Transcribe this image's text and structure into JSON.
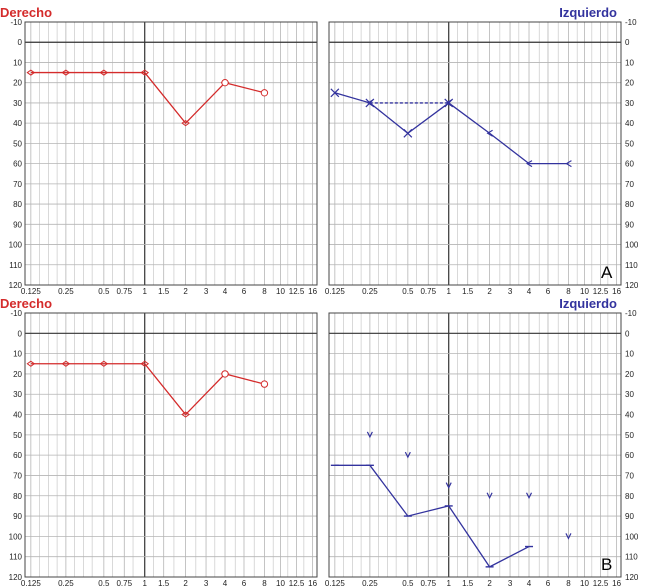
{
  "colors": {
    "right": "#d42b2b",
    "left": "#33339e",
    "grid": "#c9c9c9",
    "frame": "#444444"
  },
  "chart_data": [
    {
      "id": "A-right",
      "type": "line",
      "title": "Derecho",
      "tag": "",
      "x": [
        "0.125",
        "0.25",
        "0.5",
        "0.75",
        "1",
        "1.5",
        "2",
        "3",
        "4",
        "6",
        "8",
        "10",
        "12.5",
        "16"
      ],
      "y_ticks": [
        "-10",
        "0",
        "10",
        "20",
        "30",
        "40",
        "50",
        "60",
        "70",
        "80",
        "90",
        "100",
        "110",
        "120"
      ],
      "ylim": [
        -10,
        120
      ],
      "grid": true,
      "y_axis_side": "left",
      "series": [
        {
          "marker": "diamond",
          "style": "solid",
          "points": [
            [
              0.125,
              15
            ],
            [
              0.25,
              15
            ],
            [
              0.5,
              15
            ],
            [
              1,
              15
            ],
            [
              2,
              40
            ],
            [
              4,
              20
            ]
          ]
        },
        {
          "marker": "circle",
          "style": "solid",
          "points": [
            [
              4,
              20
            ],
            [
              8,
              25
            ]
          ]
        }
      ],
      "isolated_markers": []
    },
    {
      "id": "A-left",
      "type": "line",
      "title": "Izquierdo",
      "tag": "A",
      "x": [
        "0.125",
        "0.25",
        "0.5",
        "0.75",
        "1",
        "1.5",
        "2",
        "3",
        "4",
        "6",
        "8",
        "10",
        "12.5",
        "16"
      ],
      "y_ticks": [
        "-10",
        "0",
        "10",
        "20",
        "30",
        "40",
        "50",
        "60",
        "70",
        "80",
        "90",
        "100",
        "110",
        "120"
      ],
      "ylim": [
        -10,
        120
      ],
      "grid": true,
      "y_axis_side": "right",
      "series": [
        {
          "marker": "x",
          "style": "solid",
          "points": [
            [
              0.125,
              25
            ],
            [
              0.25,
              30
            ],
            [
              0.5,
              45
            ],
            [
              1,
              30
            ]
          ]
        },
        {
          "marker": "lt",
          "style": "dashed",
          "points": [
            [
              0.25,
              30
            ],
            [
              1,
              30
            ]
          ]
        },
        {
          "marker": "lt",
          "style": "solid",
          "points": [
            [
              1,
              30
            ],
            [
              2,
              45
            ],
            [
              4,
              60
            ],
            [
              8,
              60
            ]
          ]
        }
      ],
      "isolated_markers": []
    },
    {
      "id": "B-right",
      "type": "line",
      "title": "Derecho",
      "tag": "",
      "x": [
        "0.125",
        "0.25",
        "0.5",
        "0.75",
        "1",
        "1.5",
        "2",
        "3",
        "4",
        "6",
        "8",
        "10",
        "12.5",
        "16"
      ],
      "y_ticks": [
        "-10",
        "0",
        "10",
        "20",
        "30",
        "40",
        "50",
        "60",
        "70",
        "80",
        "90",
        "100",
        "110",
        "120"
      ],
      "ylim": [
        -10,
        120
      ],
      "grid": true,
      "y_axis_side": "left",
      "series": [
        {
          "marker": "diamond",
          "style": "solid",
          "points": [
            [
              0.125,
              15
            ],
            [
              0.25,
              15
            ],
            [
              0.5,
              15
            ],
            [
              1,
              15
            ],
            [
              2,
              40
            ],
            [
              4,
              20
            ]
          ]
        },
        {
          "marker": "circle",
          "style": "solid",
          "points": [
            [
              4,
              20
            ],
            [
              8,
              25
            ]
          ]
        }
      ],
      "isolated_markers": []
    },
    {
      "id": "B-left",
      "type": "line",
      "title": "Izquierdo",
      "tag": "B",
      "x": [
        "0.125",
        "0.25",
        "0.5",
        "0.75",
        "1",
        "1.5",
        "2",
        "3",
        "4",
        "6",
        "8",
        "10",
        "12.5",
        "16"
      ],
      "y_ticks": [
        "-10",
        "0",
        "10",
        "20",
        "30",
        "40",
        "50",
        "60",
        "70",
        "80",
        "90",
        "100",
        "110",
        "120"
      ],
      "ylim": [
        -10,
        120
      ],
      "grid": true,
      "y_axis_side": "right",
      "series": [
        {
          "marker": "dash",
          "style": "solid",
          "points": [
            [
              0.125,
              65
            ],
            [
              0.25,
              65
            ],
            [
              0.5,
              90
            ],
            [
              1,
              85
            ],
            [
              2,
              115
            ],
            [
              4,
              105
            ]
          ]
        }
      ],
      "isolated_markers": [
        {
          "marker": "v",
          "points": [
            [
              0.25,
              50
            ],
            [
              0.5,
              60
            ],
            [
              1,
              75
            ],
            [
              2,
              80
            ],
            [
              4,
              80
            ],
            [
              8,
              100
            ]
          ]
        }
      ]
    }
  ]
}
